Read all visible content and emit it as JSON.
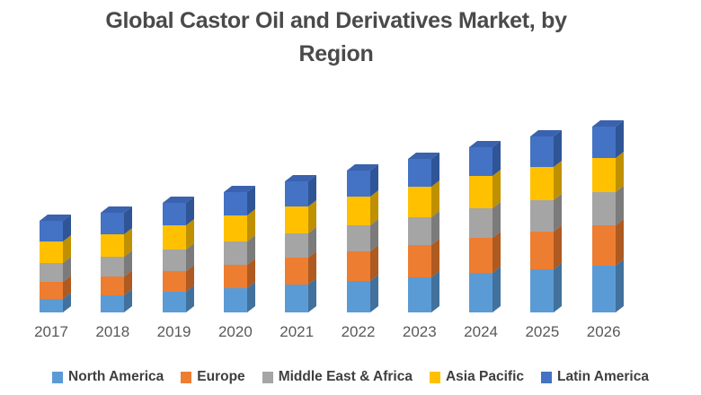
{
  "header": {
    "title_display": "Global Castor Oil and Derivatives Market, by\nRegion"
  },
  "chart_data": {
    "type": "bar",
    "subtype": "3d-stacked-column",
    "title": "Global Castor Oil and Derivatives Market, by Region",
    "xlabel": "",
    "ylabel": "",
    "value_axis_visible": false,
    "gridlines": false,
    "legend_position": "bottom",
    "categories": [
      "2017",
      "2018",
      "2019",
      "2020",
      "2021",
      "2022",
      "2023",
      "2024",
      "2025",
      "2026"
    ],
    "series": [
      {
        "name": "North America",
        "color": "#5B9BD5",
        "side_color": "#41719C",
        "values": [
          15,
          19,
          23,
          27,
          31,
          35,
          39,
          44,
          48,
          52
        ]
      },
      {
        "name": "Europe",
        "color": "#ED7D31",
        "side_color": "#AE5A21",
        "values": [
          19,
          21,
          23,
          26,
          30,
          33,
          36,
          39,
          42,
          45
        ]
      },
      {
        "name": "Middle East & Africa",
        "color": "#A5A5A5",
        "side_color": "#7B7B7B",
        "values": [
          21,
          22,
          24,
          26,
          27,
          29,
          31,
          33,
          35,
          37
        ]
      },
      {
        "name": "Asia Pacific",
        "color": "#FFC000",
        "side_color": "#BF9000",
        "values": [
          24,
          25,
          27,
          29,
          30,
          32,
          34,
          36,
          37,
          38
        ]
      },
      {
        "name": "Latin America",
        "color": "#4472C4",
        "side_color": "#2F5597",
        "top_color": "#3A62AE",
        "values": [
          23,
          24,
          25,
          26,
          28,
          29,
          31,
          32,
          34,
          35
        ]
      }
    ],
    "values_note": "No value axis is shown in the image; series values are relative stacked-segment heights estimated in screen pixels."
  }
}
